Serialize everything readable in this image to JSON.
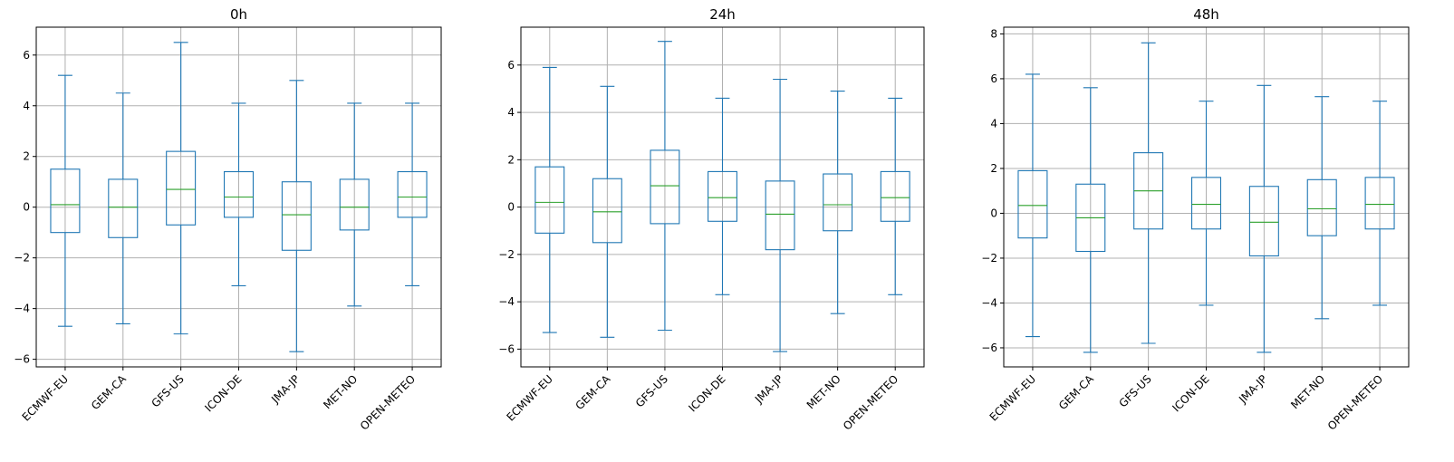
{
  "chart_data": [
    {
      "type": "boxplot",
      "title": "0h",
      "categories": [
        "ECMWF-EU",
        "GEM-CA",
        "GFS-US",
        "ICON-DE",
        "JMA-JP",
        "MET-NO",
        "OPEN-METEO"
      ],
      "yticks": [
        -6,
        -4,
        -2,
        0,
        2,
        4,
        6
      ],
      "ylim": [
        -6.3,
        7.1
      ],
      "grid": true,
      "boxes": [
        {
          "whislo": -4.7,
          "q1": -1.0,
          "med": 0.1,
          "q3": 1.5,
          "whishi": 5.2
        },
        {
          "whislo": -4.6,
          "q1": -1.2,
          "med": 0.0,
          "q3": 1.1,
          "whishi": 4.5
        },
        {
          "whislo": -5.0,
          "q1": -0.7,
          "med": 0.7,
          "q3": 2.2,
          "whishi": 6.5
        },
        {
          "whislo": -3.1,
          "q1": -0.4,
          "med": 0.4,
          "q3": 1.4,
          "whishi": 4.1
        },
        {
          "whislo": -5.7,
          "q1": -1.7,
          "med": -0.3,
          "q3": 1.0,
          "whishi": 5.0
        },
        {
          "whislo": -3.9,
          "q1": -0.9,
          "med": 0.0,
          "q3": 1.1,
          "whishi": 4.1
        },
        {
          "whislo": -3.1,
          "q1": -0.4,
          "med": 0.4,
          "q3": 1.4,
          "whishi": 4.1
        }
      ]
    },
    {
      "type": "boxplot",
      "title": "24h",
      "categories": [
        "ECMWF-EU",
        "GEM-CA",
        "GFS-US",
        "ICON-DE",
        "JMA-JP",
        "MET-NO",
        "OPEN-METEO"
      ],
      "yticks": [
        -6,
        -4,
        -2,
        0,
        2,
        4,
        6
      ],
      "ylim": [
        -6.75,
        7.6
      ],
      "grid": true,
      "boxes": [
        {
          "whislo": -5.3,
          "q1": -1.1,
          "med": 0.2,
          "q3": 1.7,
          "whishi": 5.9
        },
        {
          "whislo": -5.5,
          "q1": -1.5,
          "med": -0.2,
          "q3": 1.2,
          "whishi": 5.1
        },
        {
          "whislo": -5.2,
          "q1": -0.7,
          "med": 0.9,
          "q3": 2.4,
          "whishi": 7.0
        },
        {
          "whislo": -3.7,
          "q1": -0.6,
          "med": 0.4,
          "q3": 1.5,
          "whishi": 4.6
        },
        {
          "whislo": -6.1,
          "q1": -1.8,
          "med": -0.3,
          "q3": 1.1,
          "whishi": 5.4
        },
        {
          "whislo": -4.5,
          "q1": -1.0,
          "med": 0.1,
          "q3": 1.4,
          "whishi": 4.9
        },
        {
          "whislo": -3.7,
          "q1": -0.6,
          "med": 0.4,
          "q3": 1.5,
          "whishi": 4.6
        }
      ]
    },
    {
      "type": "boxplot",
      "title": "48h",
      "categories": [
        "ECMWF-EU",
        "GEM-CA",
        "GFS-US",
        "ICON-DE",
        "JMA-JP",
        "MET-NO",
        "OPEN-METEO"
      ],
      "yticks": [
        -6,
        -4,
        -2,
        0,
        2,
        4,
        6,
        8
      ],
      "ylim": [
        -6.85,
        8.3
      ],
      "grid": true,
      "boxes": [
        {
          "whislo": -5.5,
          "q1": -1.1,
          "med": 0.35,
          "q3": 1.9,
          "whishi": 6.2
        },
        {
          "whislo": -6.2,
          "q1": -1.7,
          "med": -0.2,
          "q3": 1.3,
          "whishi": 5.6
        },
        {
          "whislo": -5.8,
          "q1": -0.7,
          "med": 1.0,
          "q3": 2.7,
          "whishi": 7.6
        },
        {
          "whislo": -4.1,
          "q1": -0.7,
          "med": 0.4,
          "q3": 1.6,
          "whishi": 5.0
        },
        {
          "whislo": -6.2,
          "q1": -1.9,
          "med": -0.4,
          "q3": 1.2,
          "whishi": 5.7
        },
        {
          "whislo": -4.7,
          "q1": -1.0,
          "med": 0.2,
          "q3": 1.5,
          "whishi": 5.2
        },
        {
          "whislo": -4.1,
          "q1": -0.7,
          "med": 0.4,
          "q3": 1.6,
          "whishi": 5.0
        }
      ]
    }
  ],
  "colors": {
    "box": "#1f77b4",
    "median": "#2ca02c",
    "grid": "#b0b0b0",
    "axis": "#000000"
  }
}
